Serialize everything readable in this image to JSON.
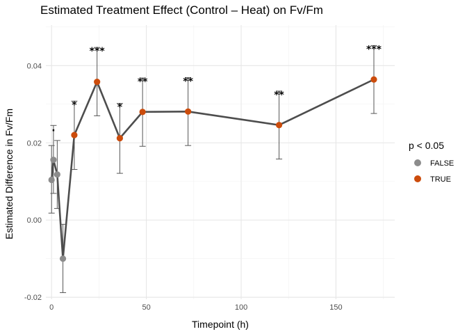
{
  "chart_data": {
    "type": "line",
    "title": "Estimated Treatment Effect (Control – Heat) on Fv/Fm",
    "xlabel": "Timepoint (h)",
    "ylabel": "Estimated Difference in Fv/Fm",
    "xlim": [
      -3,
      181
    ],
    "ylim": [
      -0.0205,
      0.0505
    ],
    "x_ticks": [
      0,
      50,
      100,
      150
    ],
    "y_ticks": [
      -0.02,
      0.0,
      0.02,
      0.04
    ],
    "y_tick_labels": [
      "-0.02",
      "0.00",
      "0.02",
      "0.04"
    ],
    "grid": true,
    "line_color": "#4d4d4d",
    "legend": {
      "title": "p < 0.05",
      "position": "right",
      "entries": [
        {
          "label": "FALSE",
          "color": "#8c8c8c"
        },
        {
          "label": "TRUE",
          "color": "#cc4c0c"
        }
      ]
    },
    "points": [
      {
        "x": 0,
        "y": 0.0104,
        "lower": 0.0018,
        "upper": 0.0193,
        "significant": false,
        "label": ""
      },
      {
        "x": 1,
        "y": 0.0156,
        "lower": 0.0069,
        "upper": 0.0245,
        "significant": false,
        "label": "."
      },
      {
        "x": 3,
        "y": 0.0118,
        "lower": 0.003,
        "upper": 0.0206,
        "significant": false,
        "label": ""
      },
      {
        "x": 6,
        "y": -0.01,
        "lower": -0.0188,
        "upper": -0.0011,
        "significant": false,
        "label": ""
      },
      {
        "x": 12,
        "y": 0.022,
        "lower": 0.0131,
        "upper": 0.0308,
        "significant": true,
        "label": "*"
      },
      {
        "x": 24,
        "y": 0.0358,
        "lower": 0.027,
        "upper": 0.0447,
        "significant": true,
        "label": "***"
      },
      {
        "x": 36,
        "y": 0.0212,
        "lower": 0.0121,
        "upper": 0.0302,
        "significant": true,
        "label": "*"
      },
      {
        "x": 48,
        "y": 0.028,
        "lower": 0.0191,
        "upper": 0.0368,
        "significant": true,
        "label": "**"
      },
      {
        "x": 72,
        "y": 0.0281,
        "lower": 0.0193,
        "upper": 0.0369,
        "significant": true,
        "label": "**"
      },
      {
        "x": 120,
        "y": 0.0246,
        "lower": 0.0158,
        "upper": 0.0334,
        "significant": true,
        "label": "**"
      },
      {
        "x": 170,
        "y": 0.0364,
        "lower": 0.0276,
        "upper": 0.0452,
        "significant": true,
        "label": "***"
      }
    ]
  }
}
